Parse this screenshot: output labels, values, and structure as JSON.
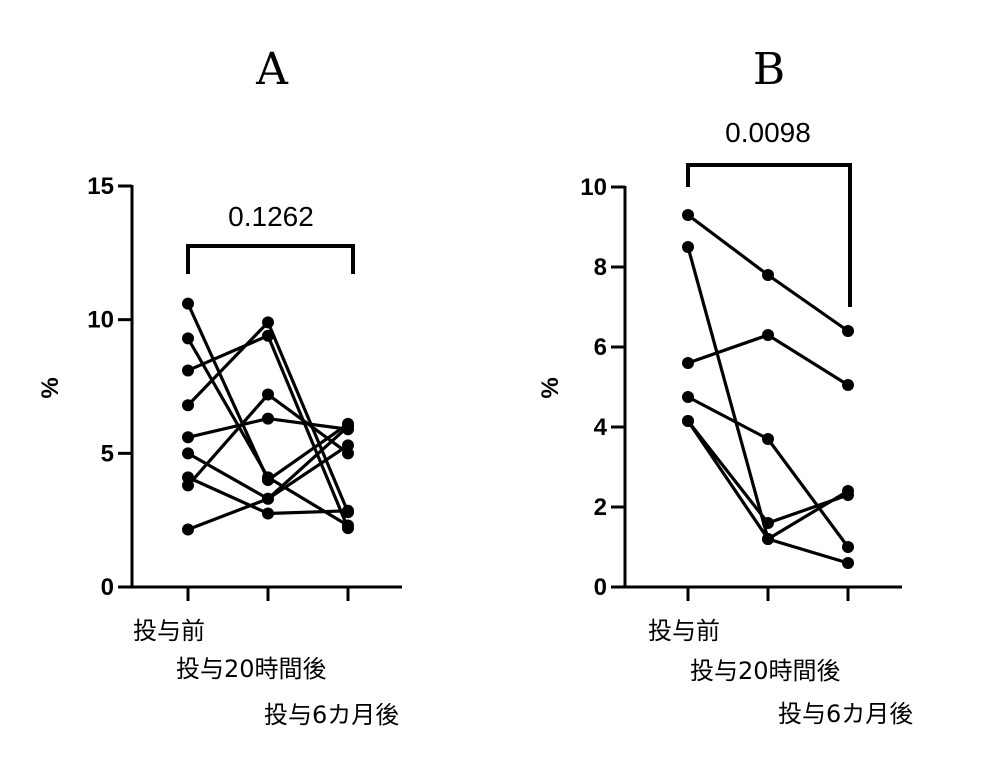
{
  "chart_data": [
    {
      "type": "line",
      "title": "A",
      "xlabel": "",
      "ylabel": "%",
      "categories": [
        "投与前",
        "投与20時間後",
        "投与6カ月後"
      ],
      "ylim": [
        0,
        15
      ],
      "yticks": [
        0,
        5,
        10,
        15
      ],
      "annotation": "0.1262",
      "series": [
        {
          "values": [
            10.6,
            4.0,
            6.1
          ]
        },
        {
          "values": [
            9.3,
            4.1,
            2.3
          ]
        },
        {
          "values": [
            8.1,
            9.4,
            2.2
          ]
        },
        {
          "values": [
            6.8,
            9.9,
            2.8
          ]
        },
        {
          "values": [
            5.6,
            6.3,
            5.9
          ]
        },
        {
          "values": [
            5.0,
            3.3,
            6.0
          ]
        },
        {
          "values": [
            4.1,
            2.75,
            2.85
          ]
        },
        {
          "values": [
            3.8,
            7.2,
            5.0
          ]
        },
        {
          "values": [
            2.15,
            3.3,
            5.3
          ]
        }
      ]
    },
    {
      "type": "line",
      "title": "B",
      "xlabel": "",
      "ylabel": "%",
      "categories": [
        "投与前",
        "投与20時間後",
        "投与6カ月後"
      ],
      "ylim": [
        0,
        10
      ],
      "yticks": [
        0,
        2,
        4,
        6,
        8,
        10
      ],
      "annotation": "0.0098",
      "series": [
        {
          "values": [
            9.3,
            7.8,
            6.4
          ]
        },
        {
          "values": [
            8.5,
            1.2,
            2.4
          ]
        },
        {
          "values": [
            5.6,
            6.3,
            5.05
          ]
        },
        {
          "values": [
            4.75,
            3.7,
            1.0
          ]
        },
        {
          "values": [
            4.15,
            1.6,
            2.3
          ]
        },
        {
          "values": [
            4.15,
            1.2,
            0.6
          ]
        }
      ]
    }
  ]
}
